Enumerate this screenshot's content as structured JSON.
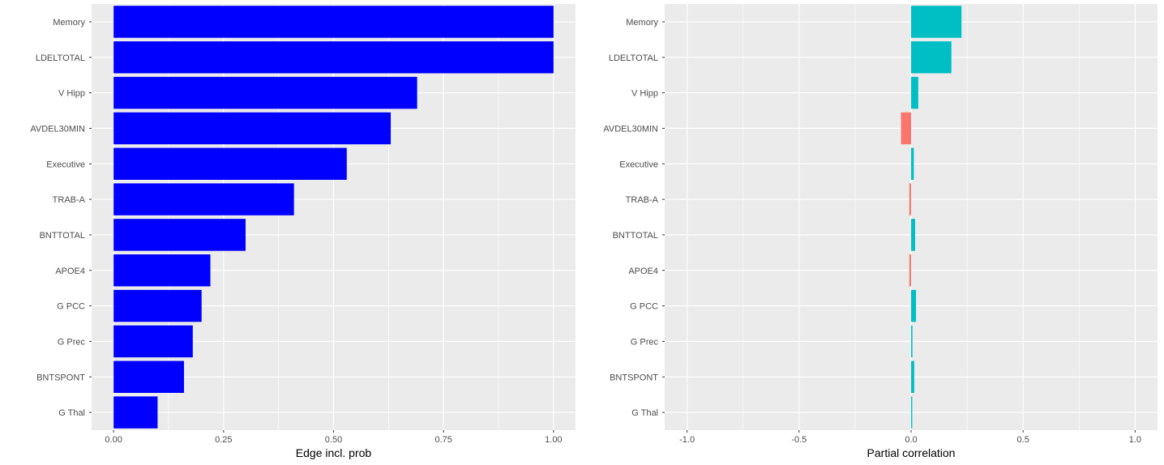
{
  "chart_data": [
    {
      "type": "bar",
      "orientation": "horizontal",
      "categories": [
        "Memory",
        "LDELTOTAL",
        "V Hipp",
        "AVDEL30MIN",
        "Executive",
        "TRAB-A",
        "BNTTOTAL",
        "APOE4",
        "G PCC",
        "G Prec",
        "BNTSPONT",
        "G Thal"
      ],
      "values": [
        1.0,
        1.0,
        0.69,
        0.63,
        0.53,
        0.41,
        0.3,
        0.22,
        0.2,
        0.18,
        0.16,
        0.1
      ],
      "xlabel": "Edge incl. prob",
      "ylabel": "",
      "xlim": [
        -0.05,
        1.05
      ],
      "xticks": [
        "0.00",
        "0.25",
        "0.50",
        "0.75",
        "1.00"
      ],
      "xtick_values": [
        0,
        0.25,
        0.5,
        0.75,
        1.0
      ],
      "bar_color": "#0000FF",
      "grid": true,
      "panel_background": "#EBEBEB"
    },
    {
      "type": "bar",
      "orientation": "horizontal",
      "categories": [
        "Memory",
        "LDELTOTAL",
        "V Hipp",
        "AVDEL30MIN",
        "Executive",
        "TRAB-A",
        "BNTTOTAL",
        "APOE4",
        "G PCC",
        "G Prec",
        "BNTSPONT",
        "G Thal"
      ],
      "values": [
        0.225,
        0.18,
        0.032,
        -0.045,
        0.012,
        -0.008,
        0.018,
        -0.008,
        0.022,
        0.006,
        0.014,
        0.005
      ],
      "xlabel": "Partial correlation",
      "ylabel": "",
      "xlim": [
        -1.1,
        1.1
      ],
      "xticks": [
        "-1.0",
        "-0.5",
        "0.0",
        "0.5",
        "1.0"
      ],
      "xtick_values": [
        -1.0,
        -0.5,
        0.0,
        0.5,
        1.0
      ],
      "positive_color": "#00BFC4",
      "negative_color": "#F8766D",
      "grid": true,
      "panel_background": "#EBEBEB"
    }
  ]
}
